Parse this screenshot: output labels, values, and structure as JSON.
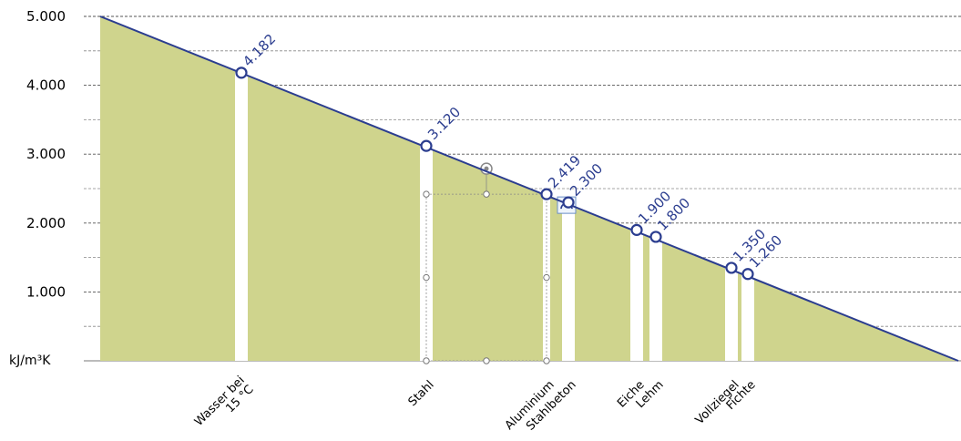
{
  "chart_data": {
    "type": "area",
    "unit_label": "kJ/m³K",
    "ylim": [
      0,
      5000
    ],
    "y_ticks": [
      "5.000",
      "4.000",
      "3.000",
      "2.000",
      "1.000"
    ],
    "y_tick_values": [
      5000,
      4000,
      3000,
      2000,
      1000
    ],
    "minor_grid_values": [
      500,
      1500,
      2500,
      3500,
      4500
    ],
    "grid": true,
    "categories": [
      {
        "label": [
          "Wasser bei",
          "15 °C"
        ],
        "value": 4182,
        "value_label": "4.182"
      },
      {
        "label": [
          "Stahl"
        ],
        "value": 3120,
        "value_label": "3.120"
      },
      {
        "label": [
          "Aluminium"
        ],
        "value": 2419,
        "value_label": "2.419"
      },
      {
        "label": [
          "Stahlbeton"
        ],
        "value": 2300,
        "value_label": "2.300"
      },
      {
        "label": [
          "Eiche"
        ],
        "value": 1900,
        "value_label": "1.900"
      },
      {
        "label": [
          "Lehm"
        ],
        "value": 1800,
        "value_label": "1.800"
      },
      {
        "label": [
          "Vollziegel"
        ],
        "value": 1350,
        "value_label": "1.350"
      },
      {
        "label": [
          "Fichte"
        ],
        "value": 1260,
        "value_label": "1.260"
      }
    ],
    "colors": {
      "area": "#cfd48d",
      "line": "#2b3d8f",
      "marker_fill": "#ffffff",
      "bar_gap": "#ffffff",
      "grid_major": "#555555",
      "grid_minor": "#888888"
    }
  }
}
